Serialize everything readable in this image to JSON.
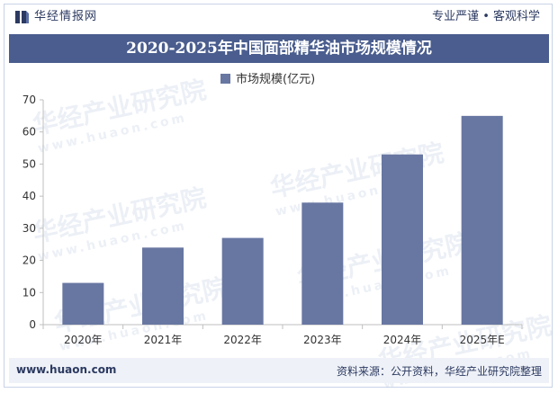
{
  "header": {
    "logo_text": "华经情报网",
    "slogan": "专业严谨 • 客观科学"
  },
  "colors": {
    "bar": "#6877a2",
    "title_bg": "#4a5d8e",
    "text": "#2c3a61",
    "axis": "#bfbfbf"
  },
  "watermark": {
    "text": "华经产业研究院",
    "sub": "www.huaon.com"
  },
  "chart_data": {
    "type": "bar",
    "title": "2020-2025年中国面部精华油市场规模情况",
    "legend": "市场规模(亿元)",
    "categories": [
      "2020年",
      "2021年",
      "2022年",
      "2023年",
      "2024年",
      "2025年E"
    ],
    "values": [
      13,
      24,
      27,
      38,
      53,
      65
    ],
    "ylim": [
      0,
      70
    ],
    "yticks": [
      0,
      10,
      20,
      30,
      40,
      50,
      60,
      70
    ],
    "xlabel": "",
    "ylabel": ""
  },
  "footer": {
    "website": "www.huaon.com",
    "source": "资料来源：公开资料，华经产业研究院整理"
  }
}
